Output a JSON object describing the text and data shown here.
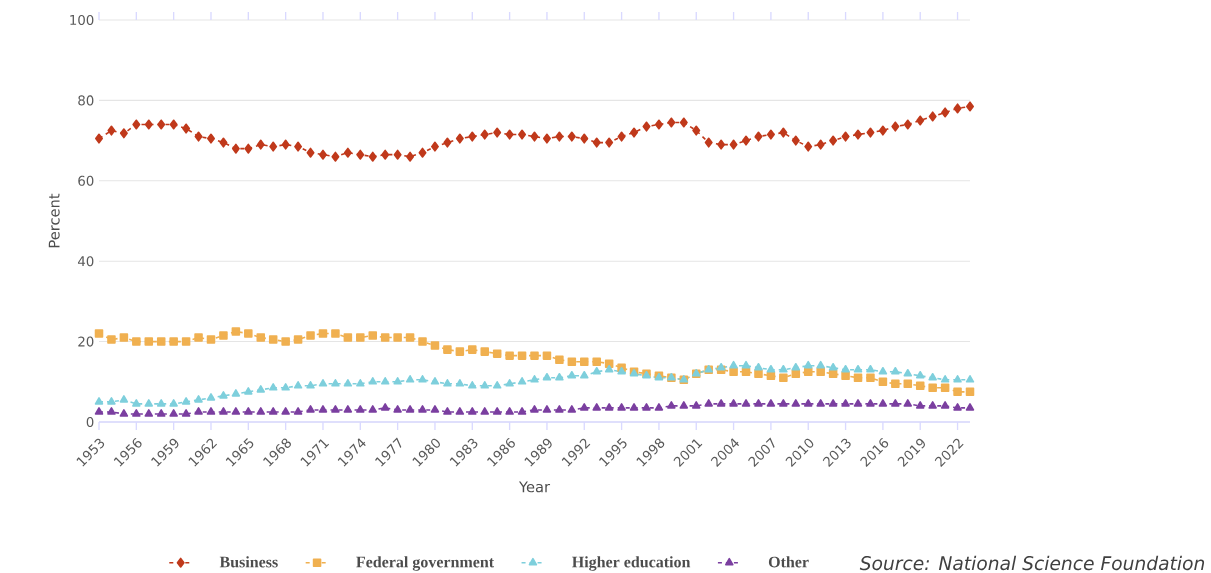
{
  "chart_data": {
    "type": "line",
    "xlabel": "Year",
    "ylabel": "Percent",
    "x": [
      1953,
      1954,
      1955,
      1956,
      1957,
      1958,
      1959,
      1960,
      1961,
      1962,
      1963,
      1964,
      1965,
      1966,
      1967,
      1968,
      1969,
      1970,
      1971,
      1972,
      1973,
      1974,
      1975,
      1976,
      1977,
      1978,
      1979,
      1980,
      1981,
      1982,
      1983,
      1984,
      1985,
      1986,
      1987,
      1988,
      1989,
      1990,
      1991,
      1992,
      1993,
      1994,
      1995,
      1996,
      1997,
      1998,
      1999,
      2000,
      2001,
      2002,
      2003,
      2004,
      2005,
      2006,
      2007,
      2008,
      2009,
      2010,
      2011,
      2012,
      2013,
      2014,
      2015,
      2016,
      2017,
      2018,
      2019,
      2020,
      2021,
      2022,
      2023
    ],
    "series": [
      {
        "name": "Business",
        "color": "#c0391b",
        "marker": "diamond",
        "line_style": "dashed",
        "values": [
          70.5,
          72.5,
          71.8,
          74,
          74,
          74,
          74,
          73,
          71,
          70.5,
          69.5,
          68,
          68,
          69,
          68.5,
          69,
          68.5,
          67,
          66.5,
          66,
          67,
          66.5,
          66,
          66.5,
          66.5,
          66,
          67,
          68.5,
          69.5,
          70.5,
          71,
          71.5,
          72,
          71.5,
          71.5,
          71,
          70.5,
          71,
          71,
          70.5,
          69.5,
          69.5,
          71,
          72,
          73.5,
          74,
          74.5,
          74.5,
          72.5,
          69.5,
          69,
          69,
          70,
          71,
          71.5,
          72,
          70,
          68.5,
          69,
          70,
          71,
          71.5,
          72,
          72.5,
          73.5,
          74,
          75,
          76,
          77,
          78,
          78.5
        ]
      },
      {
        "name": "Federal government",
        "color": "#f0b050",
        "marker": "square",
        "line_style": "dashed",
        "values": [
          22,
          20.5,
          21,
          20,
          20,
          20,
          20,
          20,
          21,
          20.5,
          21.5,
          22.5,
          22,
          21,
          20.5,
          20,
          20.5,
          21.5,
          22,
          22,
          21,
          21,
          21.5,
          21,
          21,
          21,
          20,
          19,
          18,
          17.5,
          18,
          17.5,
          17,
          16.5,
          16.5,
          16.5,
          16.5,
          15.5,
          15,
          15,
          15,
          14.5,
          13.5,
          12.5,
          12,
          11.5,
          11,
          10.5,
          12,
          13,
          13,
          12.5,
          12.5,
          12,
          11.5,
          11,
          12,
          12.5,
          12.5,
          12,
          11.5,
          11,
          11,
          10,
          9.5,
          9.5,
          9,
          8.5,
          8.5,
          7.5,
          7.5
        ]
      },
      {
        "name": "Higher education",
        "color": "#7ecfdc",
        "marker": "triangle",
        "line_style": "dashed",
        "values": [
          5,
          5,
          5.5,
          4.5,
          4.5,
          4.5,
          4.5,
          5,
          5.5,
          6,
          6.5,
          7,
          7.5,
          8,
          8.5,
          8.5,
          9,
          9,
          9.5,
          9.5,
          9.5,
          9.5,
          10,
          10,
          10,
          10.5,
          10.5,
          10,
          9.5,
          9.5,
          9,
          9,
          9,
          9.5,
          10,
          10.5,
          11,
          11,
          11.5,
          11.5,
          12.5,
          13,
          12.5,
          12,
          11.5,
          11,
          11,
          10.5,
          12,
          13,
          13.5,
          14,
          14,
          13.5,
          13,
          13,
          13.5,
          14,
          14,
          13.5,
          13,
          13,
          13,
          12.5,
          12.5,
          12,
          11.5,
          11,
          10.5,
          10.5,
          10.5
        ]
      },
      {
        "name": "Other",
        "color": "#7b3fa0",
        "marker": "triangle-down",
        "line_style": "dashed",
        "values": [
          2.5,
          2.5,
          2,
          2,
          2,
          2,
          2,
          2,
          2.5,
          2.5,
          2.5,
          2.5,
          2.5,
          2.5,
          2.5,
          2.5,
          2.5,
          3,
          3,
          3,
          3,
          3,
          3,
          3.5,
          3,
          3,
          3,
          3,
          2.5,
          2.5,
          2.5,
          2.5,
          2.5,
          2.5,
          2.5,
          3,
          3,
          3,
          3,
          3.5,
          3.5,
          3.5,
          3.5,
          3.5,
          3.5,
          3.5,
          4,
          4,
          4,
          4.5,
          4.5,
          4.5,
          4.5,
          4.5,
          4.5,
          4.5,
          4.5,
          4.5,
          4.5,
          4.5,
          4.5,
          4.5,
          4.5,
          4.5,
          4.5,
          4.5,
          4,
          4,
          4,
          3.5,
          3.5
        ]
      }
    ],
    "xlim": [
      1953,
      2023
    ],
    "xticks": [
      1953,
      1956,
      1959,
      1962,
      1965,
      1968,
      1971,
      1974,
      1977,
      1980,
      1983,
      1986,
      1989,
      1992,
      1995,
      1998,
      2001,
      2004,
      2007,
      2010,
      2013,
      2016,
      2019,
      2022
    ],
    "ylim": [
      0,
      100
    ],
    "yticks": [
      0,
      20,
      40,
      60,
      80,
      100
    ],
    "grid": "y",
    "legend": "bottom",
    "annotations": [
      "Source: National Science Foundation"
    ]
  }
}
